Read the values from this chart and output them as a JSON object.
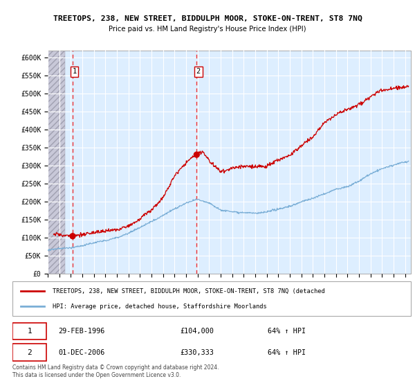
{
  "title": "TREETOPS, 238, NEW STREET, BIDDULPH MOOR, STOKE-ON-TRENT, ST8 7NQ",
  "subtitle": "Price paid vs. HM Land Registry's House Price Index (HPI)",
  "xlim_start": 1994.0,
  "xlim_end": 2025.5,
  "ylim_min": 0,
  "ylim_max": 620000,
  "yticks": [
    0,
    50000,
    100000,
    150000,
    200000,
    250000,
    300000,
    350000,
    400000,
    450000,
    500000,
    550000,
    600000
  ],
  "ytick_labels": [
    "£0",
    "£50K",
    "£100K",
    "£150K",
    "£200K",
    "£250K",
    "£300K",
    "£350K",
    "£400K",
    "£450K",
    "£500K",
    "£550K",
    "£600K"
  ],
  "xtick_years": [
    1994,
    1995,
    1996,
    1997,
    1998,
    1999,
    2000,
    2001,
    2002,
    2003,
    2004,
    2005,
    2006,
    2007,
    2008,
    2009,
    2010,
    2011,
    2012,
    2013,
    2014,
    2015,
    2016,
    2017,
    2018,
    2019,
    2020,
    2021,
    2022,
    2023,
    2024,
    2025
  ],
  "purchase1_year": 1996.16,
  "purchase1_price": 104000,
  "purchase2_year": 2006.92,
  "purchase2_price": 330333,
  "legend_red": "TREETOPS, 238, NEW STREET, BIDDULPH MOOR, STOKE-ON-TRENT, ST8 7NQ (detached",
  "legend_blue": "HPI: Average price, detached house, Staffordshire Moorlands",
  "table_row1": [
    "1",
    "29-FEB-1996",
    "£104,000",
    "64% ↑ HPI"
  ],
  "table_row2": [
    "2",
    "01-DEC-2006",
    "£330,333",
    "64% ↑ HPI"
  ],
  "footnote": "Contains HM Land Registry data © Crown copyright and database right 2024.\nThis data is licensed under the Open Government Licence v3.0.",
  "red_line_color": "#cc0000",
  "blue_line_color": "#7aaed6",
  "bg_plot_color": "#ddeeff",
  "grid_color": "#ffffff",
  "dashed_line_color": "#ee3333",
  "hatch_color": "#c8c8d8"
}
